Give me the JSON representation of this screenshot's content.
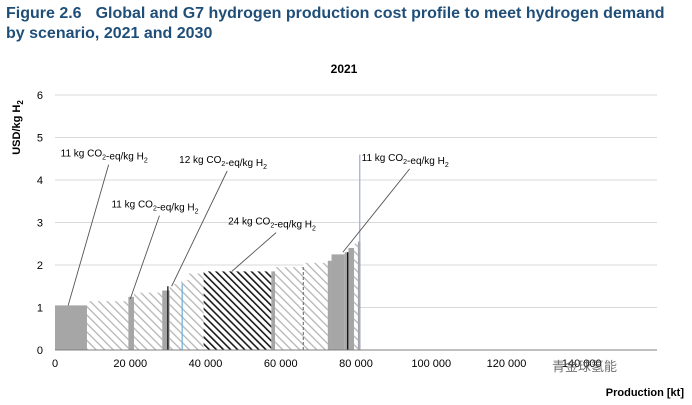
{
  "figure": {
    "number": "Figure 2.6",
    "title": "Global and G7 hydrogen production cost profile to meet hydrogen demand by scenario, 2021 and 2030"
  },
  "watermark": "青金球氢能",
  "chart_data": {
    "type": "bar",
    "subtype": "cost-supply step curve",
    "title": "2021",
    "xlabel": "Production [kt]",
    "ylabel": "USD/kg H2",
    "xlim": [
      0,
      160000
    ],
    "ylim": [
      0,
      6
    ],
    "x_ticks": [
      0,
      20000,
      40000,
      60000,
      80000,
      100000,
      120000,
      140000
    ],
    "x_tick_labels": [
      "0",
      "20 000",
      "40 000",
      "60 000",
      "80 000",
      "100 000",
      "120 000",
      "140 000"
    ],
    "y_ticks": [
      0,
      1,
      2,
      3,
      4,
      5,
      6
    ],
    "grid": "horizontal",
    "blocks": [
      {
        "x0": 0,
        "x1": 8500,
        "cost": 1.05,
        "fill": "solid-grey"
      },
      {
        "x0": 8500,
        "x1": 19500,
        "cost": 1.15,
        "fill": "hatch-light"
      },
      {
        "x0": 19500,
        "x1": 21000,
        "cost": 1.25,
        "fill": "solid-grey"
      },
      {
        "x0": 21000,
        "x1": 28500,
        "cost": 1.35,
        "fill": "hatch-light"
      },
      {
        "x0": 28500,
        "x1": 30500,
        "cost": 1.4,
        "fill": "solid-grey"
      },
      {
        "x0": 30500,
        "x1": 33500,
        "cost": 1.55,
        "fill": "hatch-light"
      },
      {
        "x0": 33500,
        "x1": 35500,
        "cost": 1.65,
        "fill": "hatch-light"
      },
      {
        "x0": 35500,
        "x1": 39500,
        "cost": 1.8,
        "fill": "hatch-light"
      },
      {
        "x0": 39500,
        "x1": 57500,
        "cost": 1.85,
        "fill": "hatch-dark"
      },
      {
        "x0": 57500,
        "x1": 58500,
        "cost": 1.85,
        "fill": "solid-grey"
      },
      {
        "x0": 58500,
        "x1": 66000,
        "cost": 1.95,
        "fill": "hatch-light"
      },
      {
        "x0": 66000,
        "x1": 72500,
        "cost": 2.05,
        "fill": "hatch-light"
      },
      {
        "x0": 72500,
        "x1": 73500,
        "cost": 2.1,
        "fill": "solid-grey"
      },
      {
        "x0": 73500,
        "x1": 77000,
        "cost": 2.25,
        "fill": "solid-grey"
      },
      {
        "x0": 77000,
        "x1": 78000,
        "cost": 2.3,
        "fill": "solid-grey"
      },
      {
        "x0": 78000,
        "x1": 79500,
        "cost": 2.4,
        "fill": "solid-grey"
      },
      {
        "x0": 79500,
        "x1": 80500,
        "cost": 2.5,
        "fill": "hatch-light"
      },
      {
        "x0": 80500,
        "x1": 81200,
        "cost": 2.55,
        "fill": "solid-grey"
      }
    ],
    "vlines": [
      {
        "x": 30000,
        "color": "#000000",
        "y1": 1.5
      },
      {
        "x": 33800,
        "color": "#6baed6",
        "y1": 1.55
      },
      {
        "x": 77800,
        "color": "#000000",
        "y1": 2.3
      },
      {
        "x": 81000,
        "color": "#9fa8da",
        "y1": 4.6
      },
      {
        "x": 66000,
        "color": "#777777",
        "y1": 1.95,
        "dashed": true
      }
    ],
    "annotations": [
      {
        "label": "11 kg CO2-eq/kg H2",
        "text_x": 1500,
        "text_y": 4.55,
        "point_x": 3500,
        "point_y": 1.05
      },
      {
        "label": "11 kg CO2-eq/kg H2",
        "text_x": 15000,
        "text_y": 3.35,
        "point_x": 20000,
        "point_y": 1.2
      },
      {
        "label": "12 kg CO2-eq/kg H2",
        "text_x": 33000,
        "text_y": 4.4,
        "point_x": 31000,
        "point_y": 1.5
      },
      {
        "label": "24 kg CO2-eq/kg H2",
        "text_x": 46000,
        "text_y": 2.95,
        "point_x": 47000,
        "point_y": 1.85
      },
      {
        "label": "11 kg CO2-eq/kg H2",
        "text_x": 81500,
        "text_y": 4.45,
        "point_x": 76500,
        "point_y": 2.3
      }
    ]
  }
}
